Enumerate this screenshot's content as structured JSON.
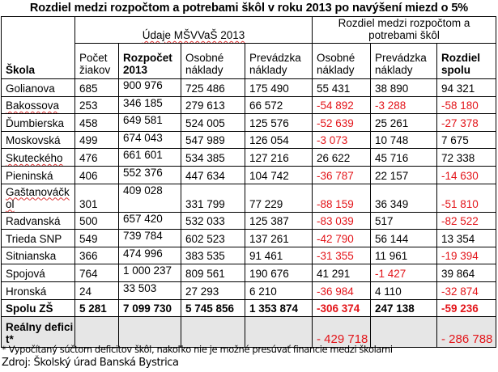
{
  "title": "Rozdiel medzi rozpočtom a potrebami škôl v roku 2013 po navýšení miezd o 5%",
  "headers": {
    "school": "Škola",
    "group1": "Údaje MŠVVaŠ 2013",
    "group2": "Rozdiel medzi rozpočtom a potrebami škôl",
    "columns": [
      "Počet žiakov",
      "Rozpočet 2013",
      "Osobné náklady",
      "Prevádzka náklady",
      "Osobné náklady",
      "Prevádzka náklady",
      "Rozdiel spolu"
    ]
  },
  "rows": [
    {
      "school": "Golianova",
      "values": [
        "685",
        "900 976",
        "725 486",
        "175 490",
        "55 431",
        "38 890",
        "94 321"
      ]
    },
    {
      "school": "Bakossova",
      "values": [
        "253",
        "346 185",
        "279 613",
        "66 572",
        "-54 892",
        "-3 288",
        "-58 180"
      ]
    },
    {
      "school": "Ďumbierska",
      "values": [
        "458",
        "649 581",
        "524 005",
        "125 576",
        "-52 639",
        "25 261",
        "-27 378"
      ]
    },
    {
      "school": "Moskovská",
      "values": [
        "499",
        "674 043",
        "547 989",
        "126 054",
        "-3 073",
        "10 748",
        "7 675"
      ]
    },
    {
      "school": "Skuteckého",
      "values": [
        "476",
        "661 601",
        "534 385",
        "127 216",
        "26 622",
        "45 716",
        "72 338"
      ]
    },
    {
      "school": "Pieninská",
      "values": [
        "406",
        "552 376",
        "447 634",
        "104 742",
        "-36 787",
        "22 157",
        "-14 630"
      ]
    },
    {
      "school": "Gaštanováčkol",
      "values": [
        "301",
        "409 028",
        "331 799",
        "77 229",
        "-88 159",
        "36 349",
        "-51 810"
      ]
    },
    {
      "school": "Radvanská",
      "values": [
        "500",
        "657 420",
        "532 033",
        "125 387",
        "-83 039",
        "517",
        "-82 522"
      ]
    },
    {
      "school": "Trieda SNP",
      "values": [
        "549",
        "739 784",
        "602 523",
        "137 261",
        "-42 790",
        "56 144",
        "13 354"
      ]
    },
    {
      "school": "Sitnianska",
      "values": [
        "366",
        "474 996",
        "383 535",
        "91 461",
        "-31 355",
        "11 961",
        "-19 394"
      ]
    },
    {
      "school": "Spojová",
      "values": [
        "764",
        "1 000 237",
        "809 561",
        "190 676",
        "41 291",
        "-1 427",
        "39 864"
      ]
    },
    {
      "school": "Hronská",
      "values": [
        "24",
        "33 503",
        "27 293",
        "6 210",
        "-36 984",
        "4 110",
        "-32 874"
      ]
    }
  ],
  "total": {
    "label": "Spolu  ZŠ",
    "values": [
      "5 281",
      "7 099 730",
      "5 745 856",
      "1 353 874",
      "-306 374",
      "247 138",
      "-59 236"
    ]
  },
  "real_deficit": {
    "label": "Reálny deficit*",
    "osobne": "- 429 718",
    "spolu": "- 286 788"
  },
  "footnote": "* Vypočítaný súčtom deficitov škôl, nakoľko nie je možné  presúvať financie medzi školami",
  "source": "Zdroj: Školský úrad Banská Bystrica",
  "colors": {
    "negative": "#e3151a",
    "deficit_row_bg": "#e6e6e6"
  }
}
